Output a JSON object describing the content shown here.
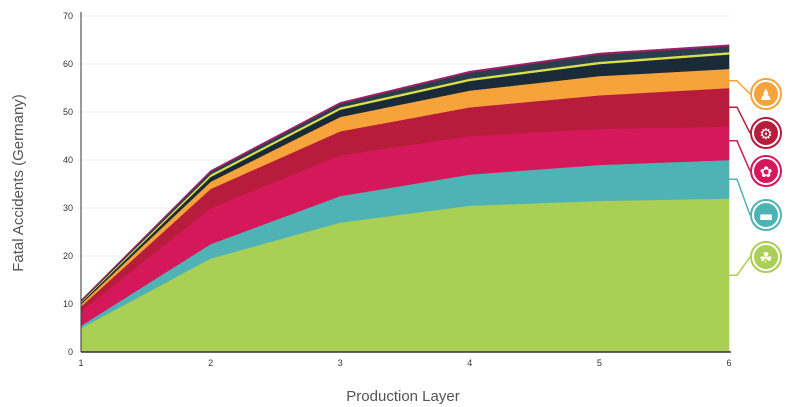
{
  "chart_data": {
    "type": "area",
    "stacked": true,
    "xlabel": "Production Layer",
    "ylabel": "Fatal Accidents (Germany)",
    "x": [
      1,
      2,
      3,
      4,
      5,
      6
    ],
    "x_ticks": [
      "1",
      "2",
      "3",
      "4",
      "5",
      "6"
    ],
    "y_ticks": [
      "0",
      "10",
      "20",
      "30",
      "40",
      "50",
      "60",
      "70"
    ],
    "ylim": [
      0,
      70
    ],
    "xlim": [
      1,
      6
    ],
    "grid": true,
    "series": [
      {
        "color": "#a9cf54",
        "values": [
          5,
          19.5,
          27,
          30.5,
          31.5,
          32
        ]
      },
      {
        "color": "#4fb3b5",
        "values": [
          0.5,
          3,
          5.5,
          6.5,
          7.5,
          8
        ]
      },
      {
        "color": "#d4185a",
        "values": [
          3,
          7.5,
          8.5,
          8,
          7.5,
          7
        ]
      },
      {
        "color": "#b71c3c",
        "values": [
          1,
          4,
          5,
          6,
          7,
          8
        ]
      },
      {
        "color": "#f5a33a",
        "values": [
          0.5,
          1.5,
          3,
          3.5,
          4,
          4
        ]
      },
      {
        "color": "#1b2a38",
        "values": [
          0.3,
          1,
          1.5,
          2,
          2.5,
          3
        ]
      },
      {
        "color": "#d9e04a",
        "values": [
          0.2,
          0.5,
          0.5,
          0.5,
          0.5,
          0.5
        ]
      },
      {
        "color": "#2a3e4c",
        "values": [
          0.2,
          0.5,
          0.7,
          1.2,
          1.5,
          1.2
        ]
      },
      {
        "color": "#a01e68",
        "values": [
          0.1,
          0.3,
          0.3,
          0.3,
          0.3,
          0.3
        ]
      }
    ],
    "legend_icons": [
      {
        "icon": "worker-icon",
        "color": "#f5a33a"
      },
      {
        "icon": "gear-icon",
        "color": "#b71c3c"
      },
      {
        "icon": "brain-icon",
        "color": "#d4185a"
      },
      {
        "icon": "truck-icon",
        "color": "#4fb3b5"
      },
      {
        "icon": "sprout-icon",
        "color": "#a9cf54"
      }
    ]
  }
}
